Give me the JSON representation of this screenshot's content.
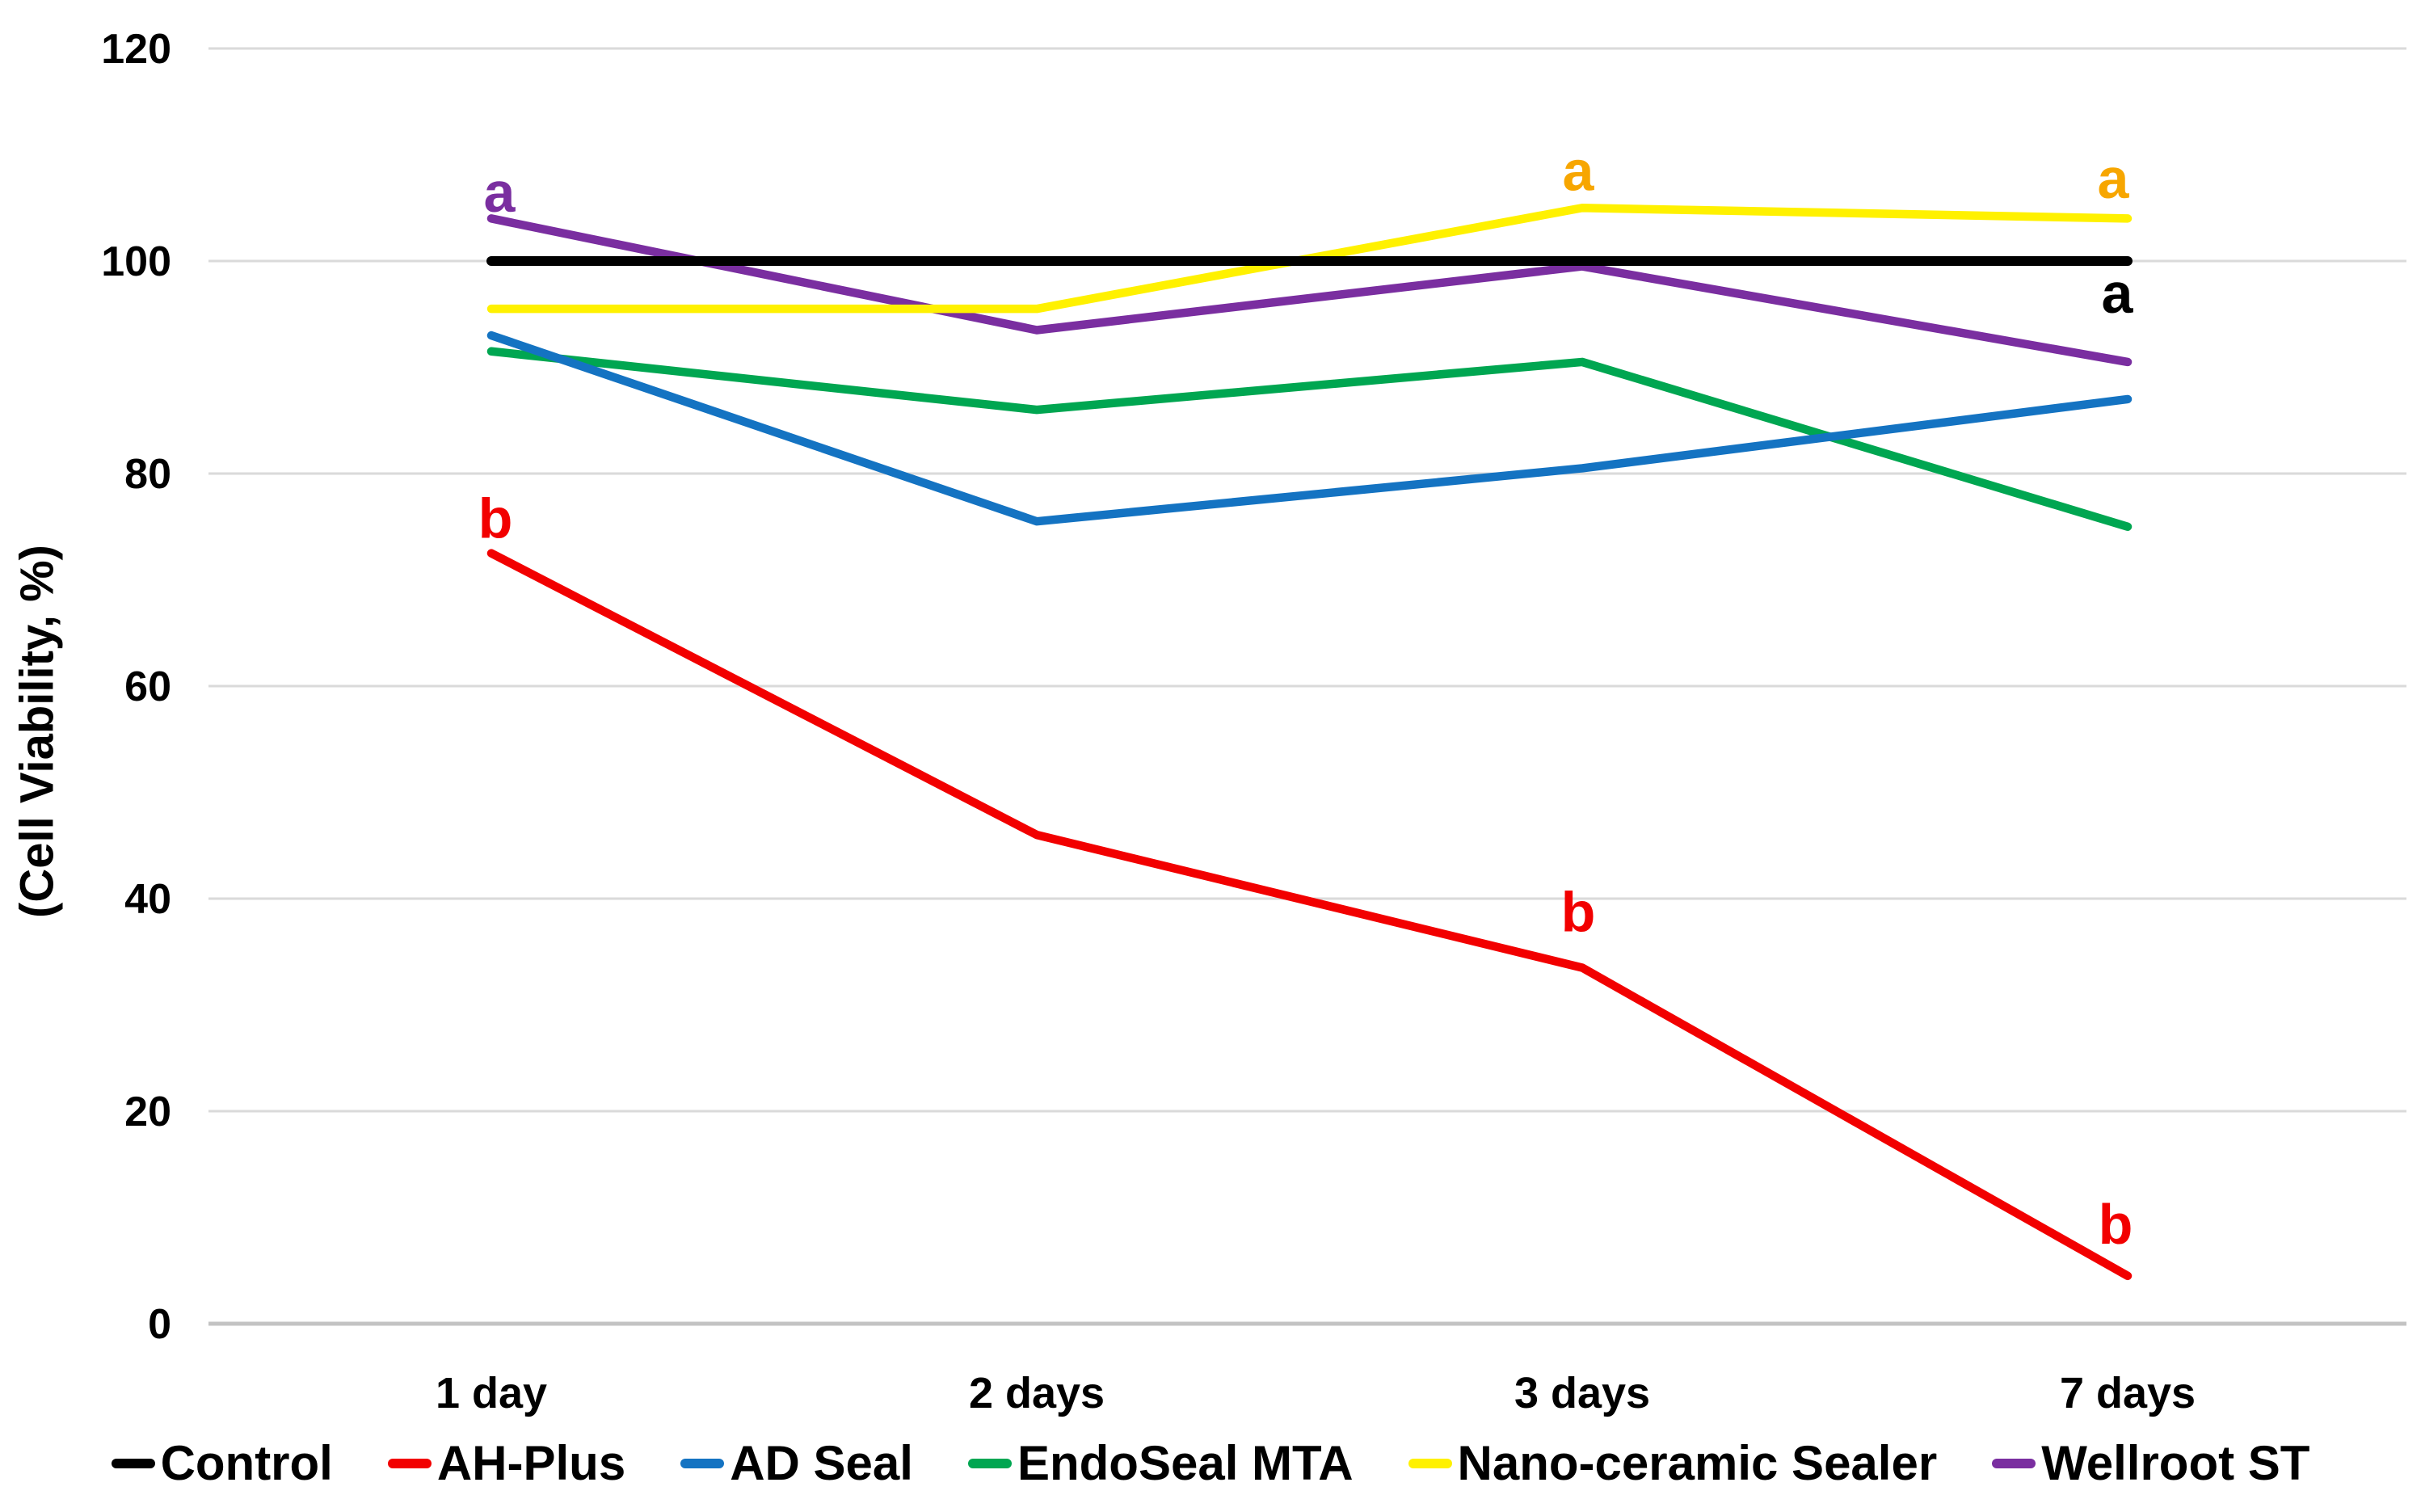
{
  "figure": {
    "y_axis_title": "(Cell Viability, %)"
  },
  "chart_data": {
    "type": "line",
    "title": "",
    "xlabel": "",
    "ylabel": "(Cell Viability, %)",
    "categories": [
      "1 day",
      "2 days",
      "3 days",
      "7 days"
    ],
    "ylim": [
      0,
      120
    ],
    "y_tick_step": 20,
    "grid": true,
    "legend_position": "bottom",
    "series": [
      {
        "name": "Control",
        "color": "#000000",
        "values": [
          100,
          100,
          100,
          100
        ],
        "width": 12
      },
      {
        "name": "AH-Plus",
        "color": "#F20000",
        "values": [
          72.5,
          46,
          33.5,
          4.5
        ],
        "width": 10.5
      },
      {
        "name": "AD Seal",
        "color": "#1473C2",
        "values": [
          93,
          75.5,
          80.5,
          87
        ],
        "width": 10.5
      },
      {
        "name": "EndoSeal MTA",
        "color": "#00A651",
        "values": [
          91.5,
          86,
          90.5,
          75
        ],
        "width": 10.5
      },
      {
        "name": "Nano-ceramic Sealer",
        "color": "#FFF100",
        "values": [
          95.5,
          95.5,
          105,
          104
        ],
        "width": 10.5
      },
      {
        "name": "Wellroot ST",
        "color": "#7A2EA0",
        "values": [
          104,
          93.5,
          99.5,
          90.5
        ],
        "width": 10.5
      }
    ],
    "annotations": [
      {
        "text": "a",
        "color": "#7A2EA0",
        "category_index": 0,
        "value": 106.5,
        "dx": 10
      },
      {
        "text": "b",
        "color": "#F20000",
        "category_index": 0,
        "value": 75.8,
        "dx": 5
      },
      {
        "text": "a",
        "color": "#F7A600",
        "category_index": 2,
        "value": 108.5,
        "dx": -5
      },
      {
        "text": "b",
        "color": "#F20000",
        "category_index": 2,
        "value": 38.8,
        "dx": -5
      },
      {
        "text": "a",
        "color": "#F7A600",
        "category_index": 3,
        "value": 107.8,
        "dx": -18
      },
      {
        "text": "a",
        "color": "#000000",
        "category_index": 3,
        "value": 97,
        "dx": -13
      },
      {
        "text": "b",
        "color": "#F20000",
        "category_index": 3,
        "value": 9.4,
        "dx": -15
      }
    ]
  }
}
